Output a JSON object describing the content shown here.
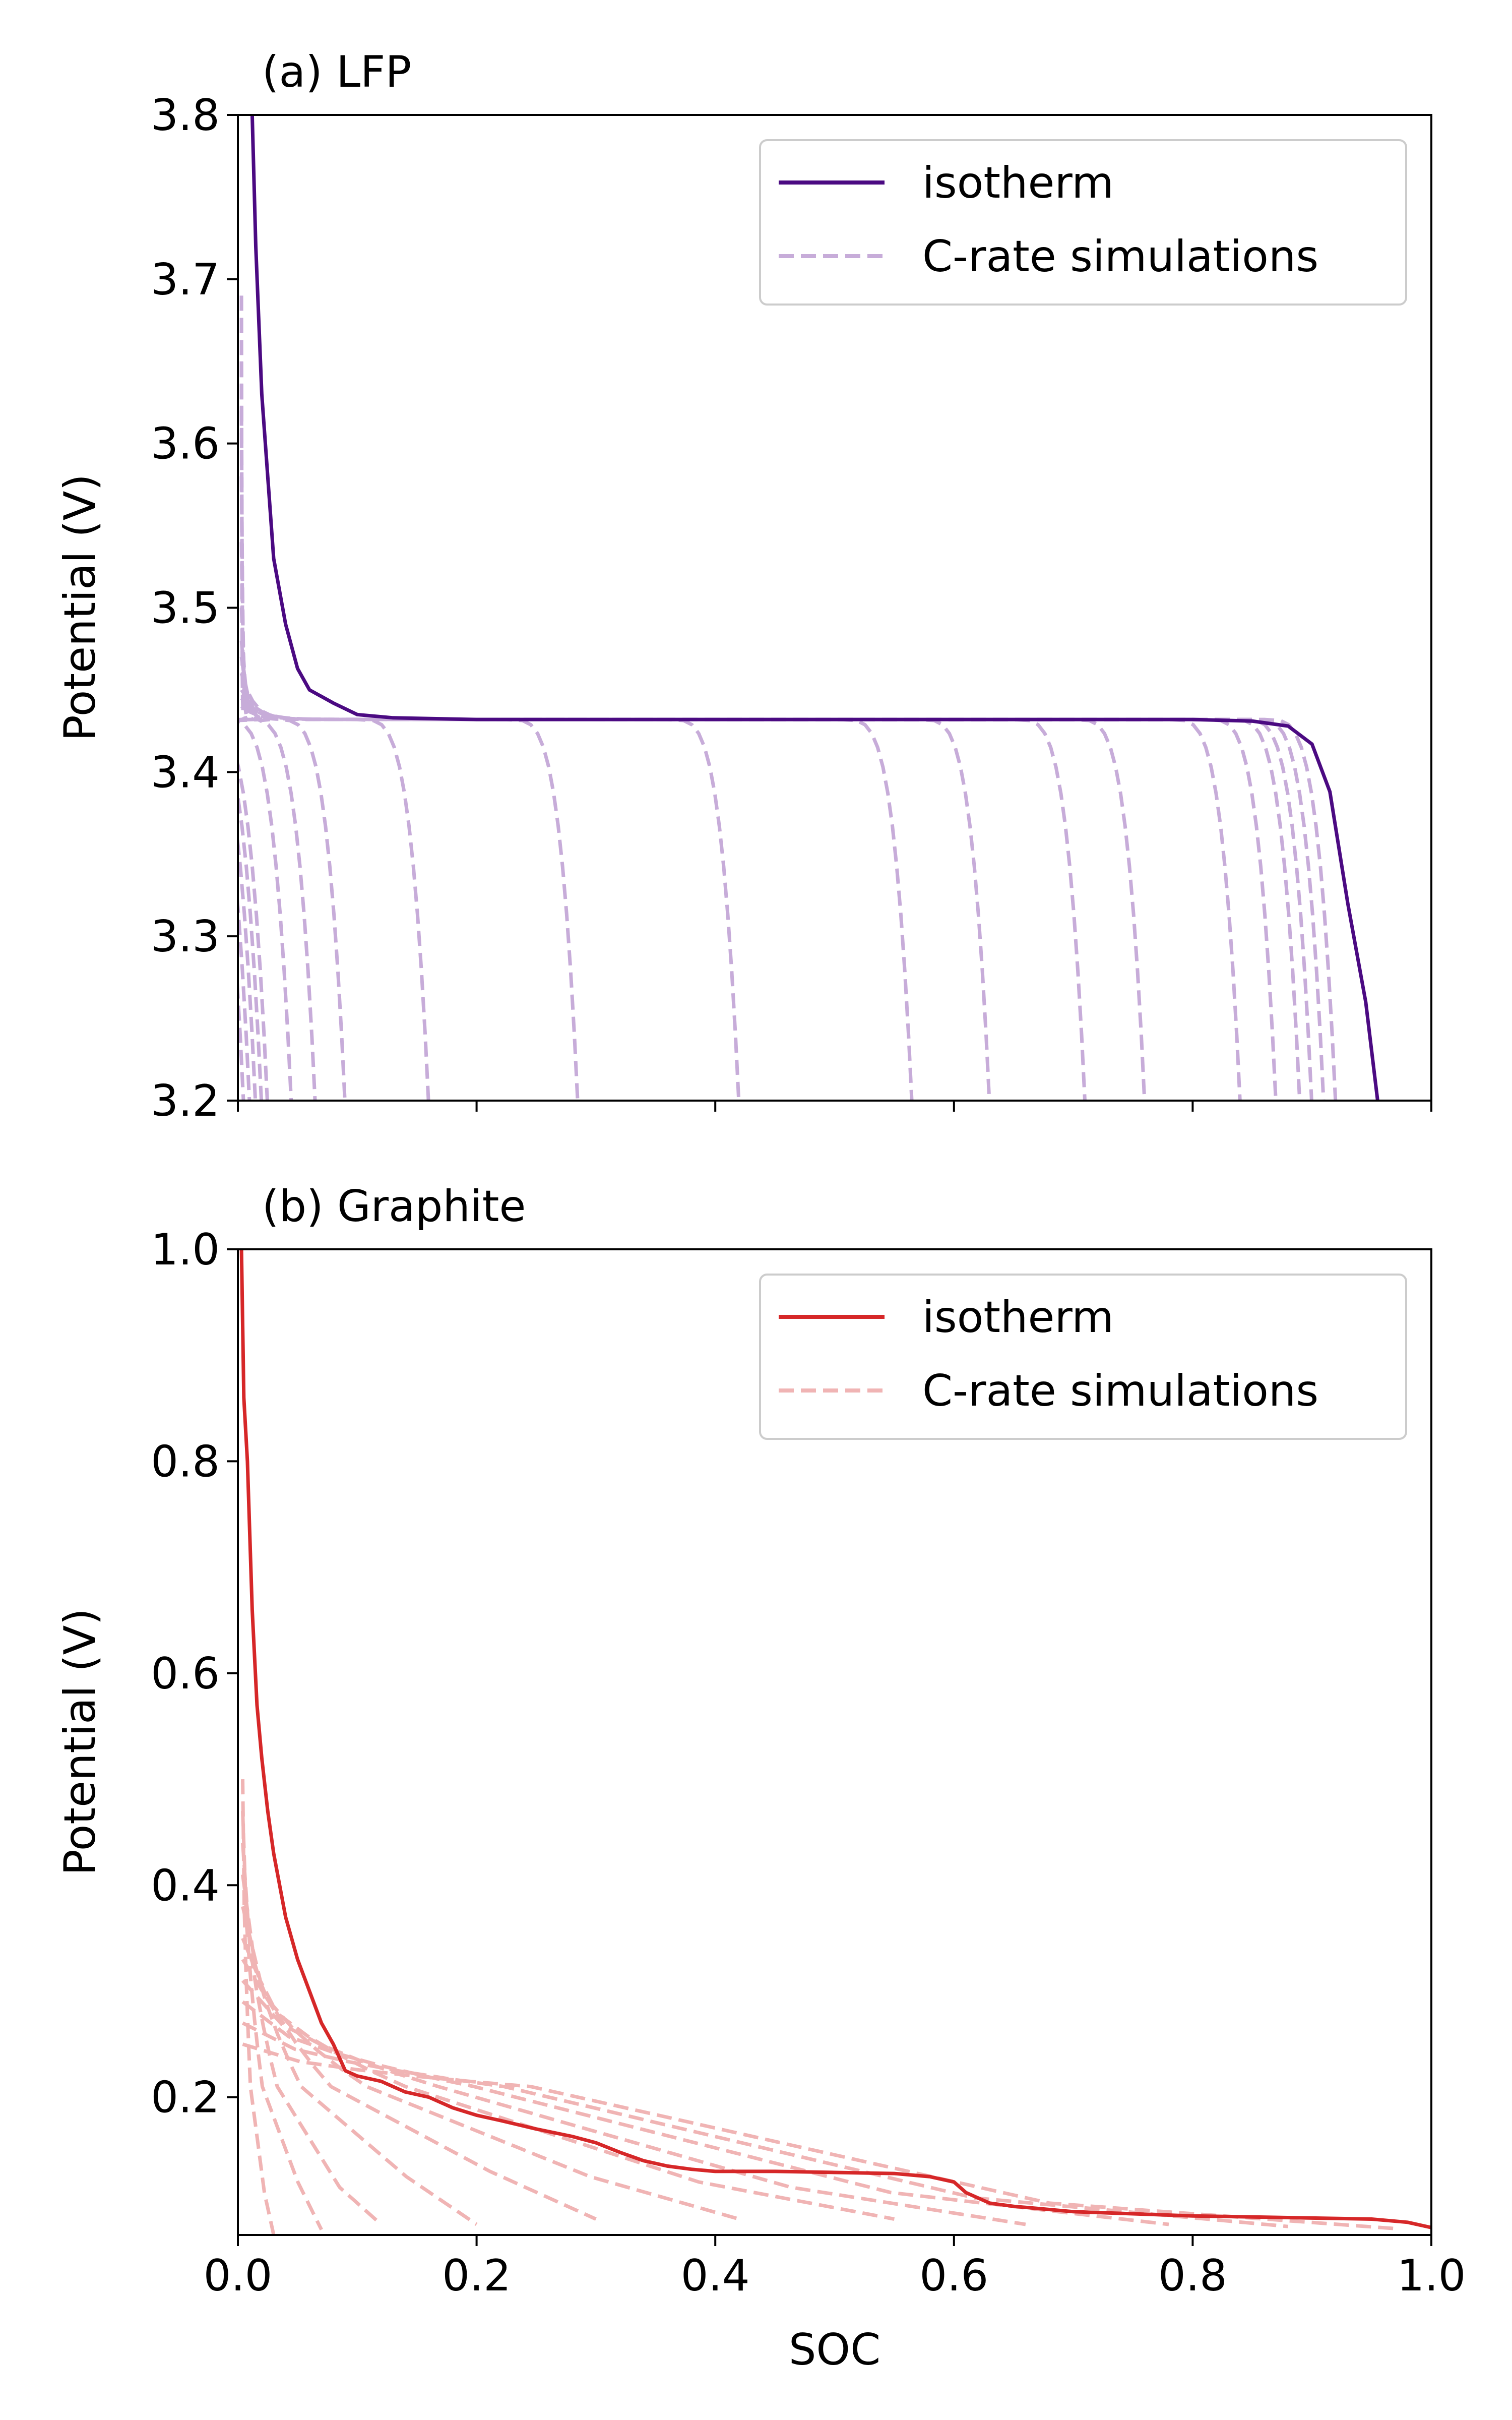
{
  "chart_data": [
    {
      "type": "line",
      "title": "(a) LFP",
      "xlabel": "",
      "ylabel": "Potential (V)",
      "xlim": [
        0.0,
        1.0
      ],
      "ylim": [
        3.2,
        3.8
      ],
      "yticks": [
        3.2,
        3.3,
        3.4,
        3.5,
        3.6,
        3.7,
        3.8
      ],
      "ytick_labels": [
        "3.2",
        "3.3",
        "3.4",
        "3.5",
        "3.6",
        "3.7",
        "3.8"
      ],
      "xticks": [
        0.0,
        0.2,
        0.4,
        0.6,
        0.8,
        1.0
      ],
      "show_xtick_labels": false,
      "grid": false,
      "legend": {
        "position": "top-right",
        "entries": [
          "isotherm",
          "C-rate simulations"
        ]
      },
      "colors": {
        "isotherm": "#4b0a82",
        "sims": "#c7acd9"
      },
      "plateau": 3.432,
      "sim_end_soc": [
        0.005,
        0.01,
        0.015,
        0.02,
        0.025,
        0.045,
        0.065,
        0.09,
        0.16,
        0.285,
        0.42,
        0.565,
        0.63,
        0.71,
        0.76,
        0.84,
        0.87,
        0.89,
        0.9,
        0.91,
        0.92
      ],
      "sim_start_v": [
        3.69,
        3.65,
        3.62,
        3.58,
        3.54,
        3.5,
        3.48,
        3.47,
        3.46,
        3.45,
        3.445,
        3.44,
        3.44,
        3.44,
        3.44,
        3.44,
        3.44,
        3.44,
        3.44,
        3.44,
        3.44
      ],
      "series": [
        {
          "name": "isotherm",
          "x": [
            0.012,
            0.015,
            0.02,
            0.03,
            0.04,
            0.05,
            0.06,
            0.08,
            0.1,
            0.13,
            0.2,
            0.4,
            0.6,
            0.8,
            0.85,
            0.88,
            0.9,
            0.915,
            0.93,
            0.945,
            0.955
          ],
          "y": [
            3.8,
            3.72,
            3.63,
            3.53,
            3.49,
            3.463,
            3.45,
            3.442,
            3.435,
            3.433,
            3.432,
            3.432,
            3.432,
            3.432,
            3.431,
            3.428,
            3.417,
            3.388,
            3.32,
            3.26,
            3.2
          ]
        }
      ]
    },
    {
      "type": "line",
      "title": "(b) Graphite",
      "xlabel": "SOC",
      "ylabel": "Potential (V)",
      "xlim": [
        0.0,
        1.0
      ],
      "ylim": [
        0.07,
        1.0
      ],
      "yticks": [
        0.2,
        0.4,
        0.6,
        0.8,
        1.0
      ],
      "ytick_labels": [
        "0.2",
        "0.4",
        "0.6",
        "0.8",
        "1.0"
      ],
      "xticks": [
        0.0,
        0.2,
        0.4,
        0.6,
        0.8,
        1.0
      ],
      "xtick_labels": [
        "0.0",
        "0.2",
        "0.4",
        "0.6",
        "0.8",
        "1.0"
      ],
      "grid": false,
      "legend": {
        "position": "top-right",
        "entries": [
          "isotherm",
          "C-rate simulations"
        ]
      },
      "colors": {
        "isotherm": "#d62728",
        "sims": "#f0b4b4"
      },
      "sim_start_v": [
        0.5,
        0.47,
        0.44,
        0.41,
        0.38,
        0.35,
        0.33,
        0.31,
        0.29,
        0.27,
        0.25
      ],
      "sim_end_soc": [
        0.03,
        0.07,
        0.12,
        0.2,
        0.3,
        0.42,
        0.55,
        0.66,
        0.78,
        0.88,
        0.97
      ],
      "sim_mid_v": [
        0.11,
        0.12,
        0.115,
        0.125,
        0.13,
        0.125,
        0.12,
        0.115,
        0.11,
        0.105,
        0.1
      ],
      "sim_end_v": [
        0.07,
        0.075,
        0.08,
        0.08,
        0.085,
        0.085,
        0.085,
        0.08,
        0.08,
        0.078,
        0.076
      ],
      "series": [
        {
          "name": "isotherm",
          "x": [
            0.003,
            0.005,
            0.008,
            0.012,
            0.016,
            0.02,
            0.025,
            0.03,
            0.04,
            0.05,
            0.06,
            0.07,
            0.08,
            0.09,
            0.1,
            0.12,
            0.14,
            0.16,
            0.18,
            0.2,
            0.22,
            0.25,
            0.28,
            0.3,
            0.32,
            0.34,
            0.36,
            0.38,
            0.4,
            0.45,
            0.5,
            0.55,
            0.58,
            0.6,
            0.61,
            0.62,
            0.63,
            0.65,
            0.67,
            0.7,
            0.75,
            0.8,
            0.85,
            0.9,
            0.95,
            0.98,
            1.0
          ],
          "y": [
            1.0,
            0.86,
            0.8,
            0.66,
            0.57,
            0.52,
            0.47,
            0.43,
            0.37,
            0.33,
            0.3,
            0.27,
            0.25,
            0.225,
            0.22,
            0.215,
            0.205,
            0.2,
            0.19,
            0.183,
            0.178,
            0.17,
            0.163,
            0.157,
            0.148,
            0.14,
            0.135,
            0.132,
            0.13,
            0.13,
            0.129,
            0.128,
            0.125,
            0.12,
            0.11,
            0.105,
            0.1,
            0.097,
            0.095,
            0.092,
            0.09,
            0.088,
            0.087,
            0.086,
            0.085,
            0.082,
            0.077
          ]
        }
      ]
    }
  ]
}
